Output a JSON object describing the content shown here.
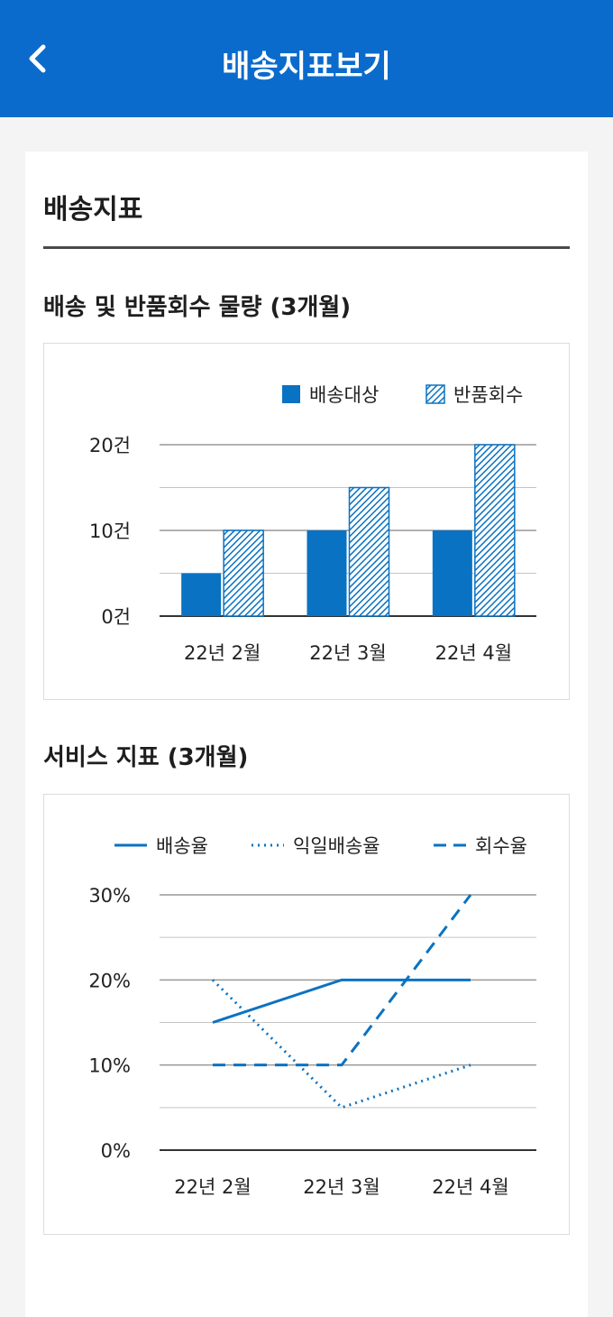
{
  "header": {
    "title": "배송지표보기",
    "back_icon": "chevron-left-icon"
  },
  "section": {
    "title": "배송지표"
  },
  "charts": [
    {
      "heading": "배송 및 반품회수 물량 (3개월)",
      "chart_data": {
        "type": "bar",
        "categories": [
          "22년 2월",
          "22년 3월",
          "22년 4월"
        ],
        "series": [
          {
            "name": "배송대상",
            "values": [
              5,
              10,
              10
            ],
            "color": "#0a72c2",
            "pattern": "solid"
          },
          {
            "name": "반품회수",
            "values": [
              10,
              15,
              20
            ],
            "color": "#0a72c2",
            "pattern": "hatched"
          }
        ],
        "ylim": [
          0,
          20
        ],
        "yticks": [
          {
            "value": 0,
            "label": "0건"
          },
          {
            "value": 10,
            "label": "10건"
          },
          {
            "value": 20,
            "label": "20건"
          }
        ],
        "minor_gridlines": [
          5,
          15
        ],
        "legend_position": "top-right",
        "grid": true
      }
    },
    {
      "heading": "서비스 지표 (3개월)",
      "chart_data": {
        "type": "line",
        "categories": [
          "22년 2월",
          "22년 3월",
          "22년 4월"
        ],
        "series": [
          {
            "name": "배송율",
            "values": [
              15,
              20,
              20
            ],
            "color": "#0a72c2",
            "dash": "solid"
          },
          {
            "name": "익일배송율",
            "values": [
              20,
              5,
              10
            ],
            "color": "#0a72c2",
            "dash": "dotted"
          },
          {
            "name": "회수율",
            "values": [
              10,
              10,
              30
            ],
            "color": "#0a72c2",
            "dash": "dashed"
          }
        ],
        "ylim": [
          0,
          30
        ],
        "yticks": [
          {
            "value": 0,
            "label": "0%"
          },
          {
            "value": 10,
            "label": "10%"
          },
          {
            "value": 20,
            "label": "20%"
          },
          {
            "value": 30,
            "label": "30%"
          }
        ],
        "minor_gridlines": [
          5,
          15,
          25
        ],
        "legend_position": "top-right",
        "grid": true
      }
    }
  ]
}
